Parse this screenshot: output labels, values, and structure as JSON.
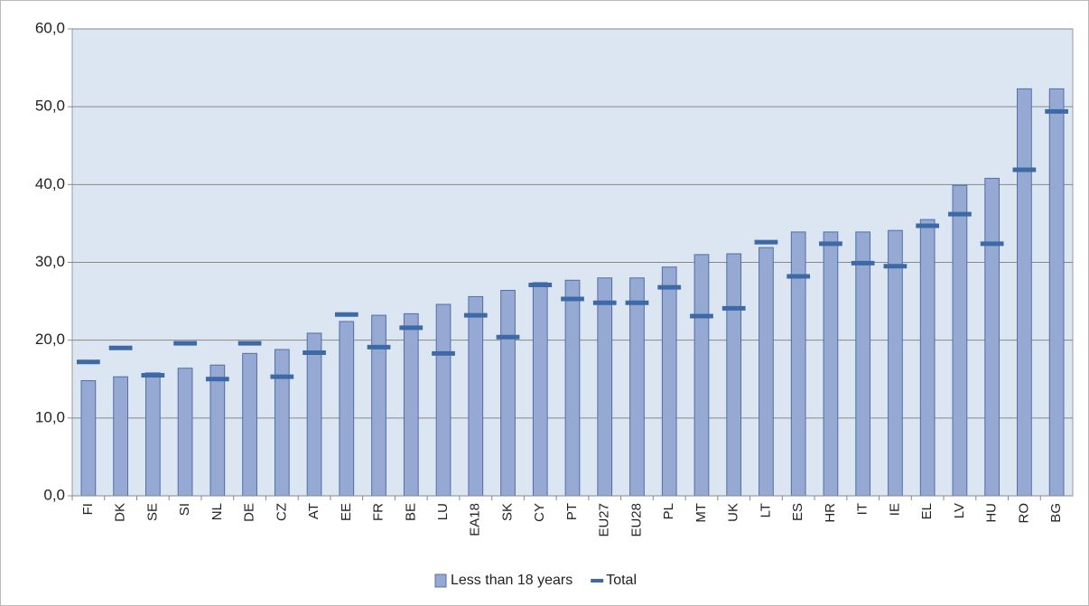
{
  "chart_data": {
    "type": "bar",
    "categories": [
      "FI",
      "DK",
      "SE",
      "SI",
      "NL",
      "DE",
      "CZ",
      "AT",
      "EE",
      "FR",
      "BE",
      "LU",
      "EA18",
      "SK",
      "CY",
      "PT",
      "EU27",
      "EU28",
      "PL",
      "MT",
      "UK",
      "LT",
      "ES",
      "HR",
      "IT",
      "IE",
      "EL",
      "LV",
      "HU",
      "RO",
      "BG"
    ],
    "series": [
      {
        "name": "Less than 18 years",
        "color": "#95a9d3",
        "style": "bar",
        "values": [
          14.8,
          15.3,
          15.8,
          16.4,
          16.8,
          18.3,
          18.8,
          20.9,
          22.4,
          23.2,
          23.4,
          24.6,
          25.6,
          26.4,
          27.4,
          27.7,
          28.0,
          28.0,
          29.4,
          31.0,
          31.1,
          31.9,
          33.9,
          33.9,
          33.9,
          34.1,
          35.5,
          39.9,
          40.8,
          52.3,
          52.3
        ]
      },
      {
        "name": "Total",
        "color": "#3d6aa6",
        "style": "dash",
        "values": [
          17.2,
          19.0,
          15.5,
          19.6,
          15.0,
          19.6,
          15.3,
          18.4,
          23.3,
          19.1,
          21.6,
          18.3,
          23.2,
          20.4,
          27.1,
          25.3,
          24.8,
          24.8,
          26.8,
          23.1,
          24.1,
          32.6,
          28.2,
          32.4,
          29.9,
          29.5,
          34.7,
          36.2,
          32.4,
          41.9,
          49.4
        ]
      }
    ],
    "ylim": [
      0,
      60
    ],
    "yticks": [
      {
        "value": 0,
        "label": "0,0"
      },
      {
        "value": 10,
        "label": "10,0"
      },
      {
        "value": 20,
        "label": "20,0"
      },
      {
        "value": 30,
        "label": "30,0"
      },
      {
        "value": 40,
        "label": "40,0"
      },
      {
        "value": 50,
        "label": "50,0"
      },
      {
        "value": 60,
        "label": "60,0"
      }
    ],
    "grid": true,
    "legend": "bottom"
  }
}
